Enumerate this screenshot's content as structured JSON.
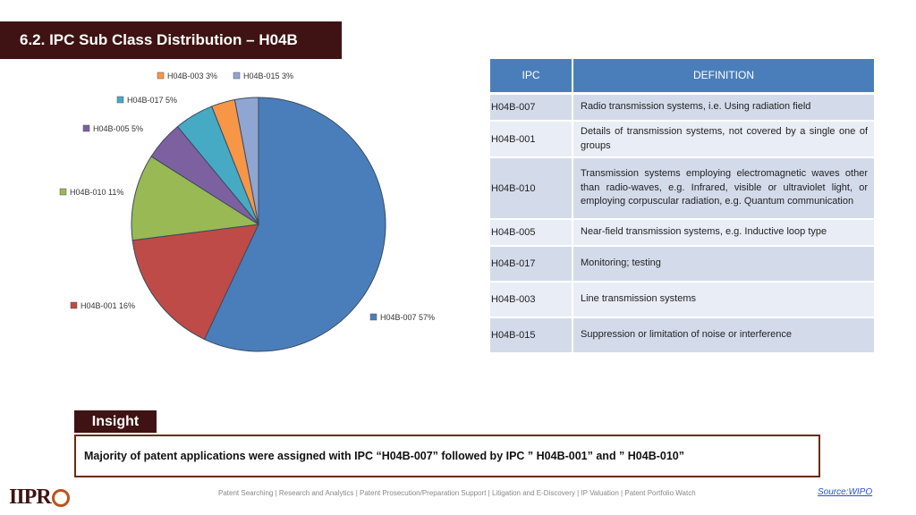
{
  "header": {
    "title": "6.2. IPC Sub Class Distribution – H04B"
  },
  "chart_data": {
    "type": "pie",
    "slices": [
      {
        "name": "H04B-007",
        "value": 57,
        "label": "H04B-007 57%",
        "color": "#4a7ebb"
      },
      {
        "name": "H04B-001",
        "value": 16,
        "label": "H04B-001 16%",
        "color": "#be4b48"
      },
      {
        "name": "H04B-010",
        "value": 11,
        "label": "H04B-010 11%",
        "color": "#98b954"
      },
      {
        "name": "H04B-005",
        "value": 5,
        "label": "H04B-005 5%",
        "color": "#7d60a0"
      },
      {
        "name": "H04B-017",
        "value": 5,
        "label": "H04B-017 5%",
        "color": "#46aac5"
      },
      {
        "name": "H04B-003",
        "value": 3,
        "label": "H04B-003 3%",
        "color": "#f79646"
      },
      {
        "name": "H04B-015",
        "value": 3,
        "label": "H04B-015 3%",
        "color": "#8fa6d2"
      }
    ]
  },
  "table": {
    "headers": {
      "code": "IPC",
      "definition": "DEFINITION"
    },
    "rows": [
      {
        "code": "H04B-007",
        "definition": "Radio transmission systems, i.e. Using radiation field"
      },
      {
        "code": "H04B-001",
        "definition": "Details of transmission systems, not covered by a single one of groups"
      },
      {
        "code": "H04B-010",
        "definition": "Transmission systems employing electromagnetic waves other than radio-waves, e.g. Infrared, visible or ultraviolet light, or employing corpuscular radiation, e.g. Quantum communication"
      },
      {
        "code": "H04B-005",
        "definition": "Near-field transmission systems, e.g. Inductive loop type"
      },
      {
        "code": "H04B-017",
        "definition": "Monitoring; testing"
      },
      {
        "code": "H04B-003",
        "definition": "Line transmission systems"
      },
      {
        "code": "H04B-015",
        "definition": "Suppression or limitation of noise or interference"
      }
    ]
  },
  "insight": {
    "label": "Insight",
    "text": "Majority of patent applications were assigned with IPC “H04B-007” followed by IPC ” H04B-001” and ” H04B-010”"
  },
  "footer": {
    "logo": "IIPRO",
    "services": "Patent Searching | Research and Analytics | Patent Prosecution/Preparation Support | Litigation and E-Discovery | IP Valuation | Patent Portfolio Watch",
    "source": "Source:WIPO"
  }
}
